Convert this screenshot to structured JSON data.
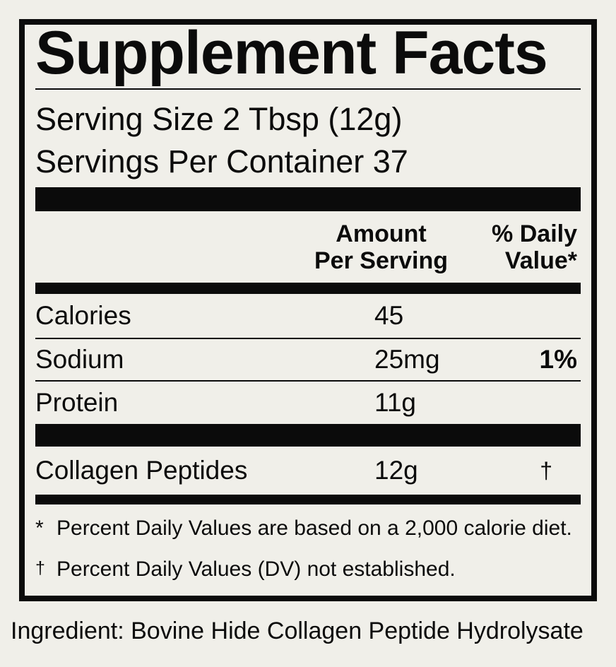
{
  "colors": {
    "background": "#F0EFE9",
    "ink": "#0B0B0B"
  },
  "label": {
    "title": "Supplement Facts",
    "serving_size": "Serving Size 2 Tbsp (12g)",
    "servings_per_container": "Servings Per Container 37",
    "headers": {
      "amount_line1": "Amount",
      "amount_line2": "Per Serving",
      "dv_line1": "% Daily",
      "dv_line2": "Value*"
    },
    "rows": [
      {
        "name": "Calories",
        "amount": "45",
        "dv": ""
      },
      {
        "name": "Sodium",
        "amount": "25mg",
        "dv": "1%"
      },
      {
        "name": "Protein",
        "amount": "11g",
        "dv": ""
      },
      {
        "name": "Collagen Peptides",
        "amount": "12g",
        "dv": "†"
      }
    ],
    "footnotes": [
      {
        "symbol": "*",
        "text": "Percent Daily Values are based on a 2,000 calorie diet."
      },
      {
        "symbol": "†",
        "text": "Percent Daily Values (DV) not established."
      }
    ],
    "ingredient": "Ingredient: Bovine Hide Collagen Peptide Hydrolysate"
  }
}
